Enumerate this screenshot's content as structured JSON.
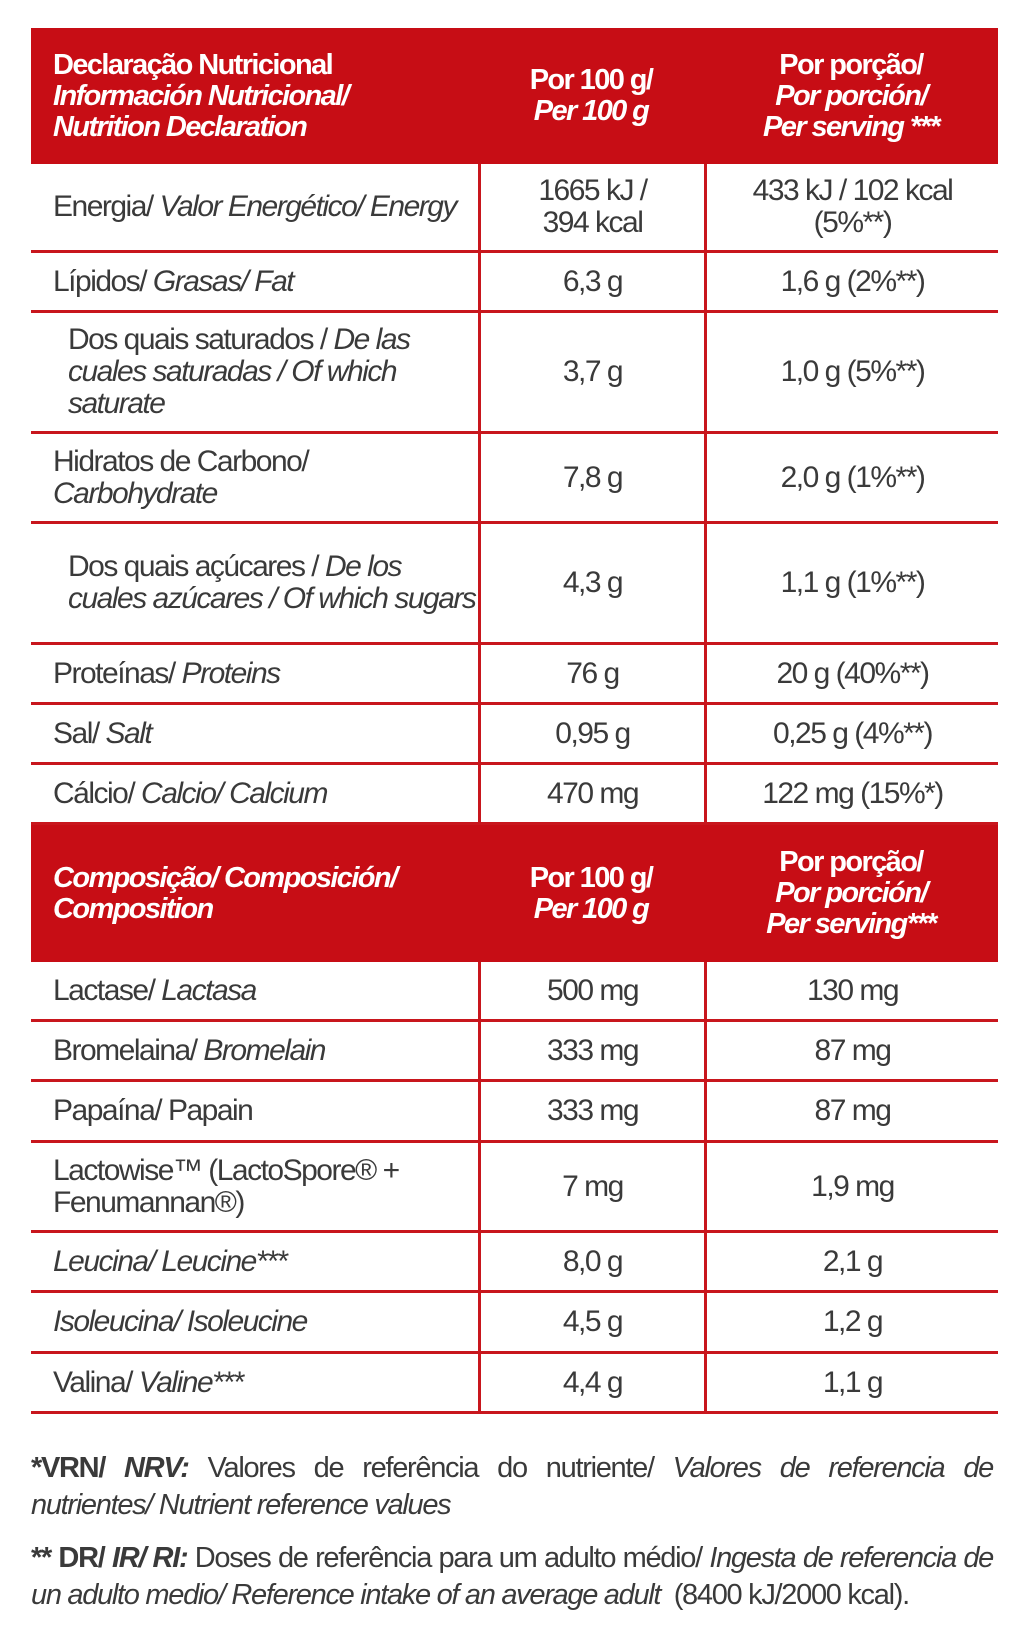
{
  "colors": {
    "header_bg": "#c70d15",
    "grid": "#c8161d",
    "text": "#3a3a3a"
  },
  "nutrition": {
    "header": {
      "col0": [
        {
          "t": "Declaração Nutricional",
          "i": false
        },
        {
          "t": "Información Nutricional/",
          "i": true
        },
        {
          "t": "Nutrition Declaration",
          "i": true
        }
      ],
      "col1": [
        {
          "t": "Por 100 g/",
          "i": false
        },
        {
          "t": "Per 100 g",
          "i": true
        }
      ],
      "col2": [
        {
          "t": "Por porção/",
          "i": false
        },
        {
          "t": "Por porción/",
          "i": true
        },
        {
          "t": "Per serving ***",
          "i": true
        }
      ]
    },
    "rows": [
      {
        "label": [
          {
            "t": "Energia/ ",
            "i": false
          },
          {
            "t": "Valor Energético/ Energy",
            "i": true
          }
        ],
        "per100": "1665 kJ / 394 kcal",
        "serving": "433 kJ / 102 kcal (5%**)",
        "indent": false
      },
      {
        "label": [
          {
            "t": "Lípidos/ ",
            "i": false
          },
          {
            "t": "Grasas/ Fat",
            "i": true
          }
        ],
        "per100": "6,3 g",
        "serving": "1,6 g (2%**)",
        "indent": false
      },
      {
        "label": [
          {
            "t": "Dos quais saturados / ",
            "i": false
          },
          {
            "t": "De las cuales saturadas / Of which saturate",
            "i": true
          }
        ],
        "per100": "3,7 g",
        "serving": "1,0 g (5%**)",
        "indent": true
      },
      {
        "label": [
          {
            "t": "Hidratos de Carbono/ ",
            "i": false
          },
          {
            "t": "Carbohydrate",
            "i": true
          }
        ],
        "per100": "7,8 g",
        "serving": "2,0 g (1%**)",
        "indent": false
      },
      {
        "label": [
          {
            "t": "Dos quais açúcares / ",
            "i": false
          },
          {
            "t": "De los cuales azúcares / Of which sugars",
            "i": true
          }
        ],
        "per100": "4,3 g",
        "serving": "1,1 g (1%**)",
        "indent": true
      },
      {
        "label": [
          {
            "t": "Proteínas/ ",
            "i": false
          },
          {
            "t": "Proteins",
            "i": true
          }
        ],
        "per100": "76 g",
        "serving": "20 g (40%**)",
        "indent": false
      },
      {
        "label": [
          {
            "t": "Sal/ ",
            "i": false
          },
          {
            "t": "Salt",
            "i": true
          }
        ],
        "per100": "0,95 g",
        "serving": "0,25 g (4%**)",
        "indent": false
      },
      {
        "label": [
          {
            "t": "Cálcio/ ",
            "i": false
          },
          {
            "t": "Calcio/ Calcium",
            "i": true
          }
        ],
        "per100": "470 mg",
        "serving": "122 mg (15%*)",
        "indent": false
      }
    ]
  },
  "composition": {
    "header": {
      "col0": [
        {
          "t": "Composição/ Composición/ Composition",
          "i": true
        }
      ],
      "col1": [
        {
          "t": "Por 100 g/",
          "i": false
        },
        {
          "t": "Per 100 g",
          "i": true
        }
      ],
      "col2": [
        {
          "t": "Por porção/",
          "i": false
        },
        {
          "t": "Por porción/",
          "i": true
        },
        {
          "t": "Per serving***",
          "i": true
        }
      ]
    },
    "rows": [
      {
        "label": [
          {
            "t": "Lactase/ ",
            "i": false
          },
          {
            "t": "Lactasa",
            "i": true
          }
        ],
        "per100": "500 mg",
        "serving": "130 mg"
      },
      {
        "label": [
          {
            "t": "Bromelaina/ ",
            "i": false
          },
          {
            "t": "Bromelain",
            "i": true
          }
        ],
        "per100": "333 mg",
        "serving": "87 mg"
      },
      {
        "label": [
          {
            "t": "Papaína/ Papain",
            "i": false
          }
        ],
        "per100": "333 mg",
        "serving": "87 mg"
      },
      {
        "label": [
          {
            "t": "Lactowise™ (LactoSpore® + Fenumannan®)",
            "i": false
          }
        ],
        "per100": "7 mg",
        "serving": "1,9 mg"
      },
      {
        "label": [
          {
            "t": "Leucina/ Leucine***",
            "i": true
          }
        ],
        "per100": "8,0 g",
        "serving": "2,1 g"
      },
      {
        "label": [
          {
            "t": "Isoleucina/ Isoleucine",
            "i": true
          }
        ],
        "per100": "4,5 g",
        "serving": "1,2 g"
      },
      {
        "label": [
          {
            "t": "Valina/ ",
            "i": false
          },
          {
            "t": "Valine***",
            "i": true
          }
        ],
        "per100": "4,4 g",
        "serving": "1,1 g"
      }
    ]
  },
  "footnotes": [
    [
      {
        "t": "*VRN/ ",
        "i": false,
        "b": true
      },
      {
        "t": "NRV:",
        "i": true,
        "b": true
      },
      {
        "t": " Valores de referência do nutriente/ ",
        "i": false
      },
      {
        "t": "Valores de referencia de nutrientes/ Nutrient reference values",
        "i": true
      }
    ],
    [
      {
        "t": "** DR/ ",
        "i": false,
        "b": true
      },
      {
        "t": "IR/ RI:",
        "i": true,
        "b": true
      },
      {
        "t": " Doses de referência para um adulto médio/ ",
        "i": false
      },
      {
        "t": "Ingesta de referencia de un adulto medio/ Reference intake of an average adult",
        "i": true
      },
      {
        "t": "  (8400 kJ/2000 kcal).",
        "i": false
      }
    ]
  ]
}
